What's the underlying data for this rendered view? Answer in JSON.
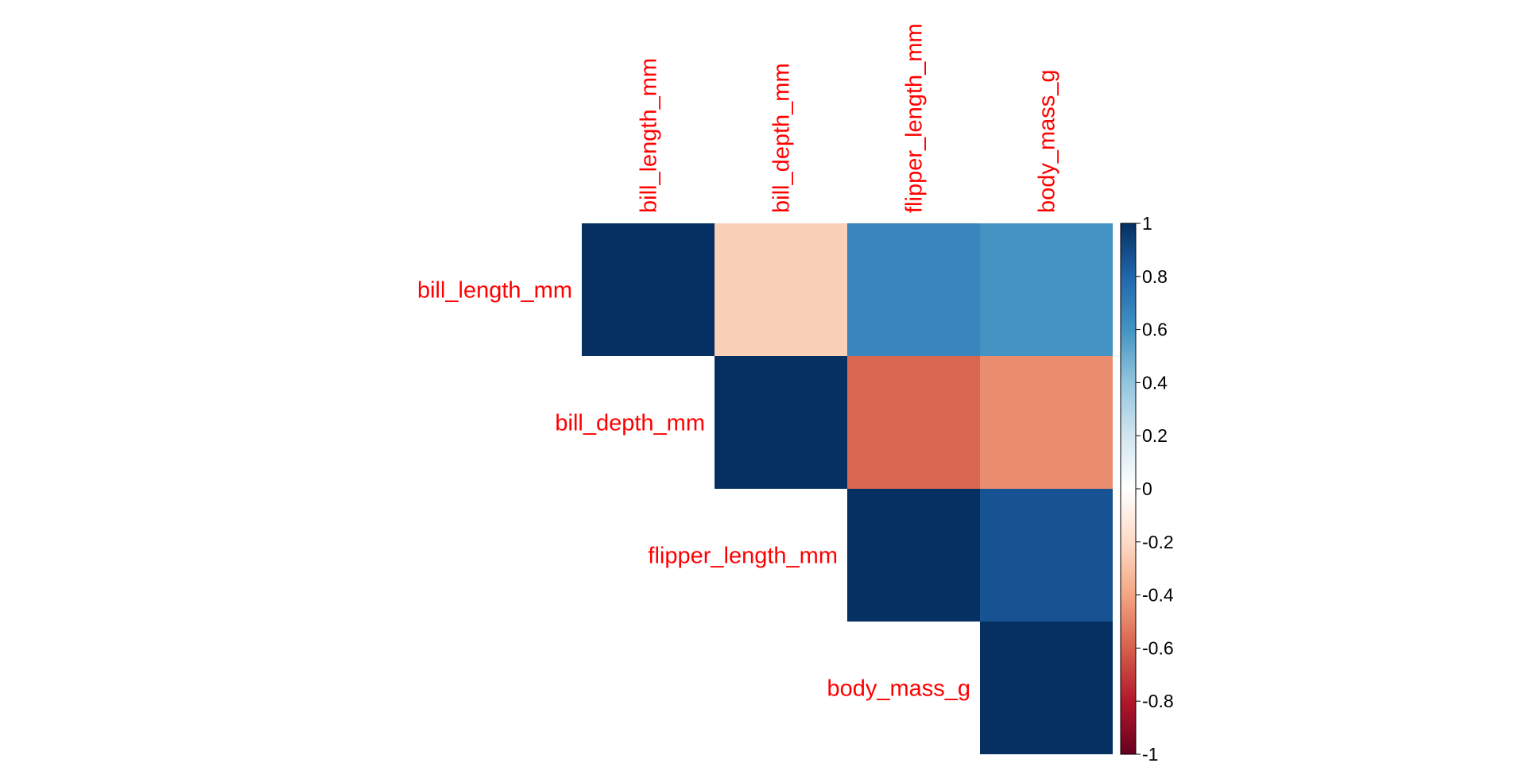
{
  "chart_data": {
    "type": "heatmap",
    "variant": "correlation-matrix-upper",
    "variables": [
      "bill_length_mm",
      "bill_depth_mm",
      "flipper_length_mm",
      "body_mass_g"
    ],
    "matrix": [
      [
        1.0,
        -0.24,
        0.66,
        0.6
      ],
      [
        -0.24,
        1.0,
        -0.58,
        -0.47
      ],
      [
        0.66,
        -0.58,
        1.0,
        0.87
      ],
      [
        0.6,
        -0.47,
        0.87,
        1.0
      ]
    ],
    "colorbar": {
      "min": -1,
      "max": 1,
      "ticks": [
        1,
        0.8,
        0.6,
        0.4,
        0.2,
        0,
        -0.2,
        -0.4,
        -0.6,
        -0.8,
        -1
      ],
      "tick_labels": [
        "1",
        "0.8",
        "0.6",
        "0.4",
        "0.2",
        "0",
        "-0.2",
        "-0.4",
        "-0.6",
        "-0.8",
        "-1"
      ],
      "palette": [
        "#67001F",
        "#B2182B",
        "#D6604D",
        "#F4A582",
        "#FDDBC7",
        "#FFFFFF",
        "#D1E5F0",
        "#92C5DE",
        "#4393C3",
        "#2166AC",
        "#053061"
      ]
    },
    "label_color": "#FF0000",
    "title": "",
    "xlabel": "",
    "ylabel": ""
  }
}
